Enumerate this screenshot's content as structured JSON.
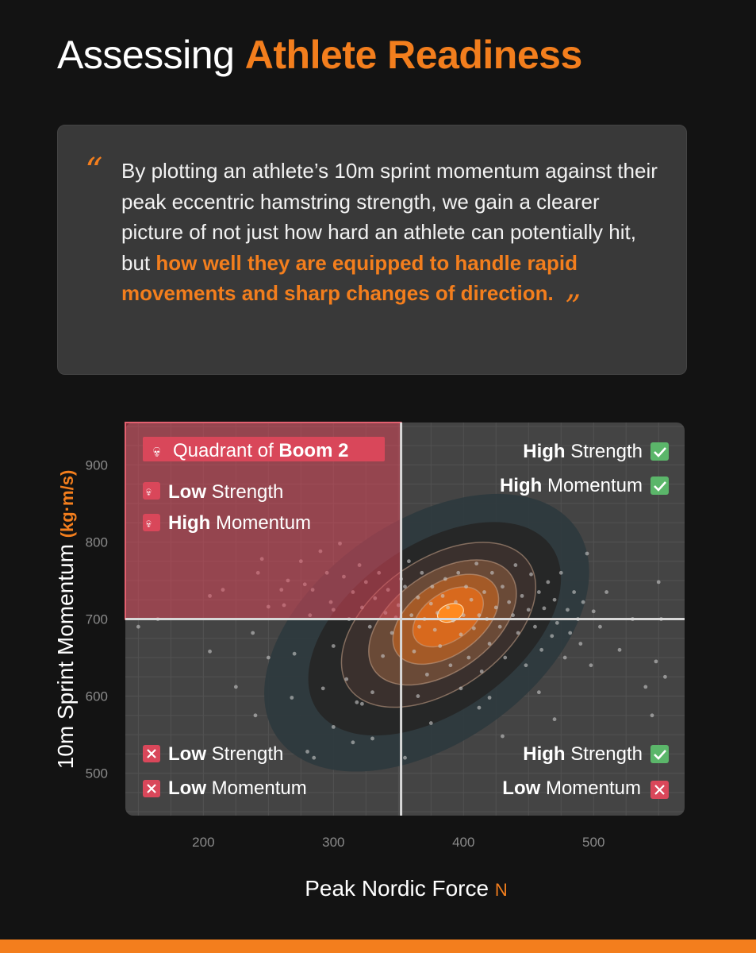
{
  "title": {
    "prefix": "Assessing",
    "highlight": "Athlete Readiness"
  },
  "quote": {
    "open_mark": "“",
    "close_mark": "”",
    "text": "By plotting an athlete’s 10m sprint momentum against their peak eccentric hamstring strength, we gain a clearer picture of not just how hard an athlete can potentially hit, but ",
    "highlight": "how well they are equipped to handle rapid movements and sharp changes of direction."
  },
  "colors": {
    "accent": "#f37e1d",
    "danger": "#d9475a",
    "check": "#5bb66a",
    "panel": "#444444"
  },
  "quadrants": {
    "top_left": {
      "title_prefix": "Quadrant of",
      "title_bold": "Boom 2",
      "line1_bold": "Low",
      "line1_rest": "Strength",
      "line2_bold": "High",
      "line2_rest": "Momentum",
      "icon": "skull-icon"
    },
    "top_right": {
      "line1_bold": "High",
      "line1_rest": "Strength",
      "line2_bold": "High",
      "line2_rest": "Momentum",
      "icon": "check-icon"
    },
    "bottom_left": {
      "line1_bold": "Low",
      "line1_rest": "Strength",
      "line2_bold": "Low",
      "line2_rest": "Momentum",
      "icon": "cross-icon"
    },
    "bottom_right": {
      "line1_bold": "High",
      "line1_rest": "Strength",
      "line2_bold": "Low",
      "line2_rest": "Momentum",
      "icon1": "check-icon",
      "icon2": "cross-icon"
    }
  },
  "chart_data": {
    "type": "scatter",
    "title": "",
    "xlabel": "Peak Nordic Force",
    "xunit": "N",
    "ylabel": "10m Sprint Momentum",
    "yunit": "(kg·m/s)",
    "xlim": [
      140,
      570
    ],
    "ylim": [
      445,
      955
    ],
    "xticks": [
      200,
      300,
      400,
      500
    ],
    "yticks": [
      500,
      600,
      700,
      800,
      900
    ],
    "x_threshold": 352,
    "y_threshold": 700,
    "grid": true,
    "density_center": [
      390,
      708
    ],
    "points": [
      [
        150,
        690
      ],
      [
        165,
        700
      ],
      [
        205,
        658
      ],
      [
        205,
        730
      ],
      [
        215,
        738
      ],
      [
        225,
        612
      ],
      [
        238,
        682
      ],
      [
        242,
        760
      ],
      [
        245,
        778
      ],
      [
        250,
        716
      ],
      [
        250,
        650
      ],
      [
        260,
        738
      ],
      [
        262,
        718
      ],
      [
        265,
        750
      ],
      [
        270,
        655
      ],
      [
        275,
        775
      ],
      [
        278,
        745
      ],
      [
        282,
        705
      ],
      [
        284,
        738
      ],
      [
        290,
        788
      ],
      [
        292,
        610
      ],
      [
        295,
        760
      ],
      [
        298,
        722
      ],
      [
        300,
        712
      ],
      [
        300,
        665
      ],
      [
        305,
        798
      ],
      [
        308,
        755
      ],
      [
        310,
        622
      ],
      [
        312,
        700
      ],
      [
        315,
        735
      ],
      [
        318,
        592
      ],
      [
        320,
        770
      ],
      [
        322,
        715
      ],
      [
        325,
        748
      ],
      [
        328,
        690
      ],
      [
        330,
        605
      ],
      [
        332,
        727
      ],
      [
        335,
        760
      ],
      [
        338,
        652
      ],
      [
        340,
        708
      ],
      [
        342,
        738
      ],
      [
        345,
        682
      ],
      [
        348,
        702
      ],
      [
        350,
        718
      ],
      [
        352,
        752
      ],
      [
        355,
        742
      ],
      [
        358,
        775
      ],
      [
        360,
        705
      ],
      [
        362,
        658
      ],
      [
        365,
        728
      ],
      [
        366,
        690
      ],
      [
        368,
        760
      ],
      [
        370,
        700
      ],
      [
        372,
        628
      ],
      [
        375,
        720
      ],
      [
        376,
        742
      ],
      [
        378,
        686
      ],
      [
        380,
        708
      ],
      [
        382,
        665
      ],
      [
        384,
        730
      ],
      [
        386,
        752
      ],
      [
        388,
        715
      ],
      [
        390,
        640
      ],
      [
        392,
        698
      ],
      [
        394,
        722
      ],
      [
        396,
        760
      ],
      [
        398,
        680
      ],
      [
        400,
        705
      ],
      [
        402,
        742
      ],
      [
        404,
        650
      ],
      [
        406,
        725
      ],
      [
        408,
        688
      ],
      [
        410,
        772
      ],
      [
        412,
        705
      ],
      [
        414,
        632
      ],
      [
        416,
        735
      ],
      [
        418,
        700
      ],
      [
        420,
        668
      ],
      [
        422,
        760
      ],
      [
        425,
        715
      ],
      [
        428,
        690
      ],
      [
        430,
        742
      ],
      [
        432,
        650
      ],
      [
        435,
        722
      ],
      [
        438,
        705
      ],
      [
        440,
        770
      ],
      [
        442,
        682
      ],
      [
        445,
        730
      ],
      [
        448,
        640
      ],
      [
        450,
        712
      ],
      [
        452,
        758
      ],
      [
        455,
        690
      ],
      [
        458,
        735
      ],
      [
        460,
        660
      ],
      [
        462,
        714
      ],
      [
        465,
        748
      ],
      [
        468,
        678
      ],
      [
        470,
        725
      ],
      [
        472,
        695
      ],
      [
        475,
        760
      ],
      [
        478,
        650
      ],
      [
        480,
        712
      ],
      [
        482,
        682
      ],
      [
        485,
        735
      ],
      [
        488,
        700
      ],
      [
        490,
        668
      ],
      [
        492,
        722
      ],
      [
        495,
        785
      ],
      [
        498,
        640
      ],
      [
        500,
        710
      ],
      [
        505,
        690
      ],
      [
        510,
        735
      ],
      [
        520,
        660
      ],
      [
        530,
        700
      ],
      [
        550,
        748
      ],
      [
        552,
        700
      ],
      [
        548,
        645
      ],
      [
        555,
        625
      ],
      [
        540,
        612
      ],
      [
        545,
        575
      ],
      [
        330,
        545
      ],
      [
        322,
        590
      ],
      [
        355,
        520
      ],
      [
        365,
        600
      ],
      [
        375,
        565
      ],
      [
        398,
        610
      ],
      [
        412,
        585
      ],
      [
        300,
        560
      ],
      [
        280,
        528
      ],
      [
        430,
        548
      ],
      [
        420,
        598
      ],
      [
        458,
        605
      ],
      [
        470,
        570
      ],
      [
        285,
        520
      ],
      [
        315,
        540
      ],
      [
        268,
        598
      ],
      [
        240,
        575
      ]
    ]
  },
  "gauges": [
    {
      "name": "density-band",
      "level": 0.2
    },
    {
      "name": "density-band",
      "level": 0.4
    },
    {
      "name": "density-band",
      "level": 0.6
    },
    {
      "name": "density-band",
      "level": 0.8
    }
  ]
}
